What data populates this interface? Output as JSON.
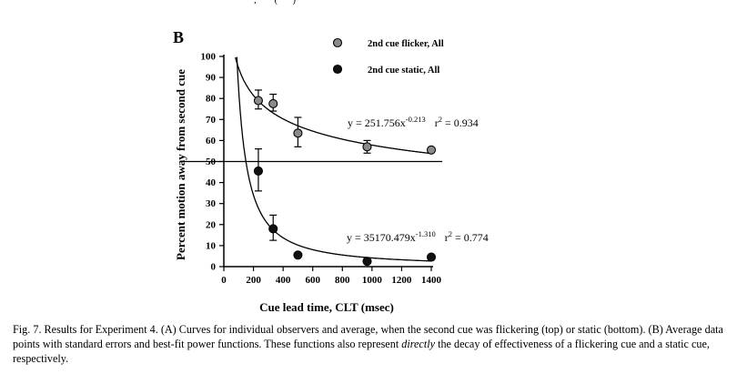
{
  "figure": {
    "panel_label": "B",
    "top_fragment": "· · · · ·  ···, · · · (·····)"
  },
  "chart_data": {
    "type": "scatter",
    "xlabel": "Cue lead time, CLT (msec)",
    "ylabel": "Percent motion away from second cue",
    "xlim": [
      0,
      1400
    ],
    "ylim": [
      0,
      100
    ],
    "x_ticks": [
      "0",
      "200",
      "400",
      "600",
      "800",
      "1000",
      "1200",
      "1400"
    ],
    "y_ticks": [
      "0",
      "10",
      "20",
      "30",
      "40",
      "50",
      "60",
      "70",
      "80",
      "90",
      "100"
    ],
    "reference_line_y": 50,
    "grid": false,
    "legend_position": "top-right",
    "series": [
      {
        "name": "2nd cue flicker, All",
        "marker_color": "#8a8a8a",
        "x": [
          233,
          333,
          500,
          967,
          1400
        ],
        "y": [
          79,
          77.5,
          63.5,
          57,
          55.5
        ],
        "err_low": [
          75,
          74,
          57,
          54,
          null
        ],
        "err_high": [
          84,
          82,
          71,
          60,
          null
        ],
        "fit": {
          "a": 251.756,
          "b": -0.213,
          "label": {
            "eq_prefix": "y = 251.756x",
            "exp": "-0.213",
            "r_prefix": "r",
            "r_sup": "2",
            "r_val": " = 0.934"
          }
        }
      },
      {
        "name": "2nd cue static, All",
        "marker_color": "#111111",
        "x": [
          233,
          333,
          500,
          967,
          1400
        ],
        "y": [
          45.5,
          18,
          5.5,
          2.5,
          4.5
        ],
        "err_low": [
          36,
          12.5,
          null,
          null,
          null
        ],
        "err_high": [
          56,
          24.5,
          null,
          null,
          null
        ],
        "fit": {
          "a": 35170.479,
          "b": -1.31,
          "label": {
            "eq_prefix": "y = 35170.479x",
            "exp": "-1.310",
            "r_prefix": "r",
            "r_sup": "2",
            "r_val": " = 0.774"
          }
        }
      }
    ]
  },
  "caption": {
    "part1": "Fig. 7. Results for Experiment 4. (A) Curves for individual observers and average, when the second cue was flickering (top) or static (bottom). (B) Average data points with standard errors and best-fit power functions. These functions also represent ",
    "emphasis": "directly",
    "part2": " the decay of effectiveness of a flickering cue and a static cue, respectively."
  }
}
